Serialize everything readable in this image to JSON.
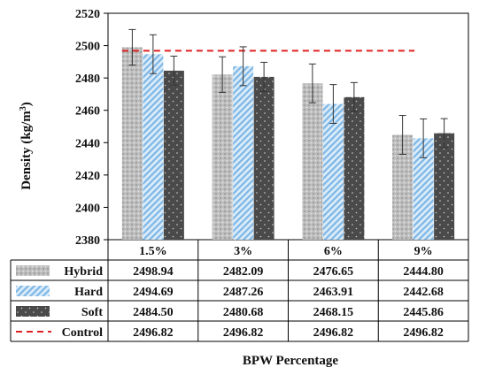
{
  "chart_data": {
    "type": "bar",
    "xlabel": "BPW Percentage",
    "ylabel": "Density (kg/m",
    "ylabel_sup": "3",
    "ylabel_close": ")",
    "ylim": [
      2380,
      2520
    ],
    "yticks": [
      2380,
      2400,
      2420,
      2440,
      2460,
      2480,
      2500,
      2520
    ],
    "categories": [
      "1.5%",
      "3%",
      "6%",
      "9%"
    ],
    "series": [
      {
        "name": "Hybrid",
        "values": [
          2498.94,
          2482.09,
          2476.65,
          2444.8
        ],
        "labels": [
          "2498.94",
          "2482.09",
          "2476.65",
          "2444.80"
        ],
        "error": [
          11,
          11,
          12,
          12
        ],
        "color": "#b5b5b5",
        "pattern": "dots-light"
      },
      {
        "name": "Hard",
        "values": [
          2494.69,
          2487.26,
          2463.91,
          2442.68
        ],
        "labels": [
          "2494.69",
          "2487.26",
          "2463.91",
          "2442.68"
        ],
        "error": [
          12,
          12,
          12,
          12
        ],
        "color": "#9ec9ea",
        "pattern": "hatch-blue"
      },
      {
        "name": "Soft",
        "values": [
          2484.5,
          2480.68,
          2468.15,
          2445.86
        ],
        "labels": [
          "2484.50",
          "2480.68",
          "2468.15",
          "2445.86"
        ],
        "error": [
          9,
          9,
          9,
          9
        ],
        "color": "#505050",
        "pattern": "dots-dark"
      }
    ],
    "reference": {
      "name": "Control",
      "value": 2496.82,
      "labels": [
        "2496.82",
        "2496.82",
        "2496.82",
        "2496.82"
      ],
      "color": "#e02020",
      "style": "dashed"
    },
    "legend": "table-below",
    "grid": false
  }
}
